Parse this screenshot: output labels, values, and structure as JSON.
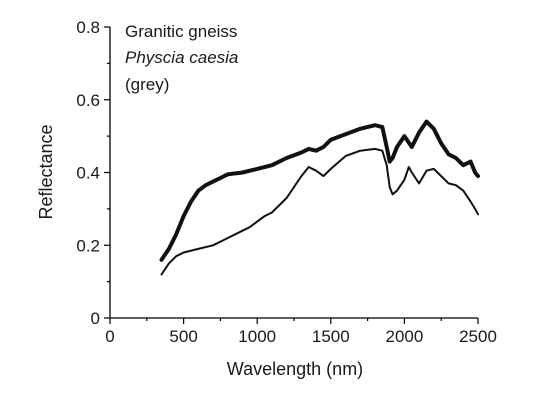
{
  "chart_data": {
    "type": "line",
    "xlabel": "Wavelength (nm)",
    "ylabel": "Reflectance",
    "xlim": [
      0,
      2500
    ],
    "ylim": [
      0,
      0.8
    ],
    "xticks": [
      0,
      500,
      1000,
      1500,
      2000,
      2500
    ],
    "xtick_labels": [
      "0",
      "500",
      "1000",
      "1500",
      "2000",
      "2500"
    ],
    "yticks": [
      0,
      0.2,
      0.4,
      0.6,
      0.8
    ],
    "ytick_labels": [
      "0",
      "0.2",
      "0.4",
      "0.6",
      "0.8"
    ],
    "grid": false,
    "annotation_lines": [
      {
        "text": "Granitic gneiss",
        "style": "normal"
      },
      {
        "text": "Physcia caesia",
        "style": "italic"
      },
      {
        "text": "(grey)",
        "style": "normal"
      }
    ],
    "series": [
      {
        "weight": "thick",
        "x": [
          350,
          400,
          450,
          500,
          550,
          600,
          650,
          700,
          750,
          800,
          900,
          1000,
          1100,
          1200,
          1300,
          1350,
          1400,
          1450,
          1500,
          1600,
          1700,
          1800,
          1850,
          1880,
          1900,
          1920,
          1950,
          2000,
          2050,
          2100,
          2150,
          2200,
          2250,
          2300,
          2350,
          2400,
          2450,
          2480,
          2500
        ],
        "y": [
          0.16,
          0.19,
          0.23,
          0.28,
          0.32,
          0.35,
          0.365,
          0.375,
          0.385,
          0.395,
          0.4,
          0.41,
          0.42,
          0.44,
          0.455,
          0.465,
          0.46,
          0.47,
          0.49,
          0.505,
          0.52,
          0.53,
          0.525,
          0.47,
          0.43,
          0.44,
          0.47,
          0.5,
          0.47,
          0.51,
          0.54,
          0.52,
          0.48,
          0.45,
          0.44,
          0.42,
          0.43,
          0.4,
          0.39
        ]
      },
      {
        "weight": "thin",
        "x": [
          350,
          400,
          450,
          500,
          600,
          700,
          800,
          900,
          950,
          1000,
          1050,
          1100,
          1200,
          1300,
          1350,
          1400,
          1450,
          1500,
          1600,
          1700,
          1800,
          1850,
          1880,
          1900,
          1920,
          1950,
          2000,
          2030,
          2050,
          2100,
          2150,
          2200,
          2250,
          2300,
          2350,
          2400,
          2450,
          2480,
          2500
        ],
        "y": [
          0.12,
          0.15,
          0.17,
          0.18,
          0.19,
          0.2,
          0.22,
          0.24,
          0.25,
          0.265,
          0.28,
          0.29,
          0.33,
          0.39,
          0.415,
          0.405,
          0.39,
          0.41,
          0.445,
          0.46,
          0.465,
          0.46,
          0.42,
          0.36,
          0.34,
          0.35,
          0.38,
          0.415,
          0.4,
          0.37,
          0.405,
          0.41,
          0.39,
          0.37,
          0.365,
          0.35,
          0.32,
          0.3,
          0.285
        ]
      }
    ]
  }
}
